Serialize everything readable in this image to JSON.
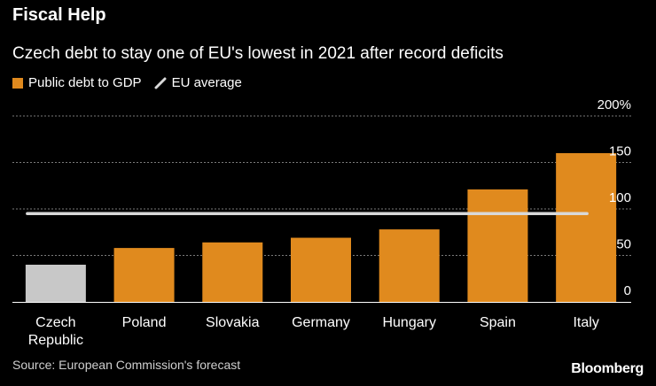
{
  "header": {
    "title": "Fiscal Help",
    "subtitle": "Czech debt to stay one of EU's lowest in 2021 after record deficits"
  },
  "legend": {
    "items": [
      {
        "label": "Public debt to GDP",
        "kind": "bar",
        "color": "#e08a1e"
      },
      {
        "label": "EU average",
        "kind": "line",
        "color": "#d9d9d9"
      }
    ]
  },
  "chart_data": {
    "type": "bar",
    "title": "Fiscal Help",
    "subtitle": "Czech debt to stay one of EU's lowest in 2021 after record deficits",
    "categories": [
      "Czech\nRepublic",
      "Poland",
      "Slovakia",
      "Germany",
      "Hungary",
      "Spain",
      "Italy"
    ],
    "values": [
      40,
      58,
      64,
      69,
      78,
      121,
      160
    ],
    "bar_colors": [
      "#c8c8c8",
      "#e08a1e",
      "#e08a1e",
      "#e08a1e",
      "#e08a1e",
      "#e08a1e",
      "#e08a1e"
    ],
    "reference_line": {
      "name": "EU average",
      "value": 95,
      "color": "#d9d9d9"
    },
    "series": [
      {
        "name": "Public debt to GDP",
        "values": [
          40,
          58,
          64,
          69,
          78,
          121,
          160
        ]
      }
    ],
    "ylim": [
      0,
      200
    ],
    "yticks": [
      {
        "value": 0,
        "label": "0"
      },
      {
        "value": 50,
        "label": "50"
      },
      {
        "value": 100,
        "label": "100"
      },
      {
        "value": 150,
        "label": "150"
      },
      {
        "value": 200,
        "label": "200%"
      }
    ],
    "xlabel": "",
    "ylabel": "",
    "grid": true,
    "legend_position": "top-left"
  },
  "footer": {
    "source": "Source: European Commission's forecast",
    "brand": "Bloomberg"
  }
}
